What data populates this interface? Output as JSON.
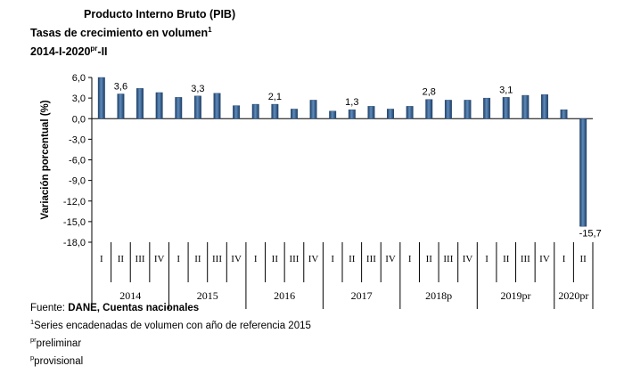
{
  "header": {
    "title": "Producto Interno Bruto (PIB)",
    "subtitle_main": "Tasas de crecimiento en volumen",
    "subtitle_sup": "1",
    "period_main": "2014-I-2020",
    "period_sup": "pr",
    "period_end": "-II"
  },
  "chart_data": {
    "type": "bar",
    "ylabel": "Variación porcentual  (%)",
    "ylim": [
      -18,
      6
    ],
    "yticks": [
      "6,0",
      "3,0",
      "0,0",
      "-3,0",
      "-6,0",
      "-9,0",
      "-12,0",
      "-15,0",
      "-18,0"
    ],
    "colors": {
      "bar": "#2d5f92",
      "bar_light": "#5f8bbb",
      "bar_dark": "#1e3f66"
    },
    "years": [
      "2014",
      "2015",
      "2016",
      "2017",
      "2018p",
      "2019pr",
      "2020pr"
    ],
    "year_quarters": [
      4,
      4,
      4,
      4,
      4,
      4,
      2
    ],
    "quarter_labels": [
      "I",
      "II",
      "III",
      "IV"
    ],
    "values": [
      6.0,
      3.6,
      4.4,
      3.8,
      3.1,
      3.3,
      3.7,
      1.9,
      2.1,
      2.1,
      1.4,
      2.7,
      1.1,
      1.3,
      1.8,
      1.4,
      1.8,
      2.8,
      2.7,
      2.7,
      3.0,
      3.1,
      3.4,
      3.5,
      1.3,
      -15.7
    ],
    "data_labels": [
      {
        "index": 1,
        "text": "3,6"
      },
      {
        "index": 5,
        "text": "3,3"
      },
      {
        "index": 9,
        "text": "2,1"
      },
      {
        "index": 13,
        "text": "1,3"
      },
      {
        "index": 17,
        "text": "2,8"
      },
      {
        "index": 21,
        "text": "3,1"
      },
      {
        "index": 25,
        "text": "-15,7"
      }
    ]
  },
  "footer": {
    "source_prefix": "Fuente: ",
    "source_bold": "DANE, Cuentas nacionales",
    "note1_sup": "1",
    "note1": "Series encadenadas de volumen con año de referencia 2015",
    "note2_sup": "pr",
    "note2": "preliminar",
    "note3_sup": "p",
    "note3": "provisional"
  }
}
